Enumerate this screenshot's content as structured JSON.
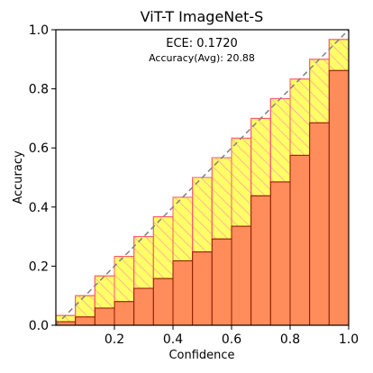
{
  "chart_data": {
    "type": "bar",
    "title": "ViT-T  ImageNet-S",
    "xlabel": "Confidence",
    "ylabel": "Accuracy",
    "xlim": [
      0.0,
      1.0
    ],
    "ylim": [
      0.0,
      1.0
    ],
    "xticks": [
      "0.2",
      "0.4",
      "0.6",
      "0.8",
      "1.0"
    ],
    "yticks": [
      "0.0",
      "0.2",
      "0.4",
      "0.6",
      "0.8",
      "1.0"
    ],
    "annotations": {
      "ece": "ECE: 0.1720",
      "accuracy": "Accuracy(Avg): 20.88"
    },
    "bin_edges": [
      0.0,
      0.0667,
      0.1333,
      0.2,
      0.2667,
      0.3333,
      0.4,
      0.4667,
      0.5333,
      0.6,
      0.6667,
      0.7333,
      0.8,
      0.8667,
      0.9333,
      1.0
    ],
    "series": [
      {
        "role": "accuracy",
        "values": [
          0.012,
          0.028,
          0.058,
          0.08,
          0.125,
          0.158,
          0.218,
          0.248,
          0.292,
          0.335,
          0.438,
          0.485,
          0.575,
          0.685,
          0.862
        ]
      },
      {
        "role": "gap",
        "values": [
          0.033,
          0.1,
          0.167,
          0.233,
          0.3,
          0.367,
          0.433,
          0.5,
          0.567,
          0.633,
          0.7,
          0.767,
          0.833,
          0.9,
          0.967
        ]
      }
    ],
    "colors": {
      "accuracy_fill": "#ff8c5a",
      "accuracy_edge": "#8b1a00",
      "gap_fill": "#ffff66",
      "gap_edge": "#ff5a70",
      "hatch": "#ff8ab0",
      "diagonal": "#808080"
    },
    "grid": false,
    "legend": "none"
  }
}
